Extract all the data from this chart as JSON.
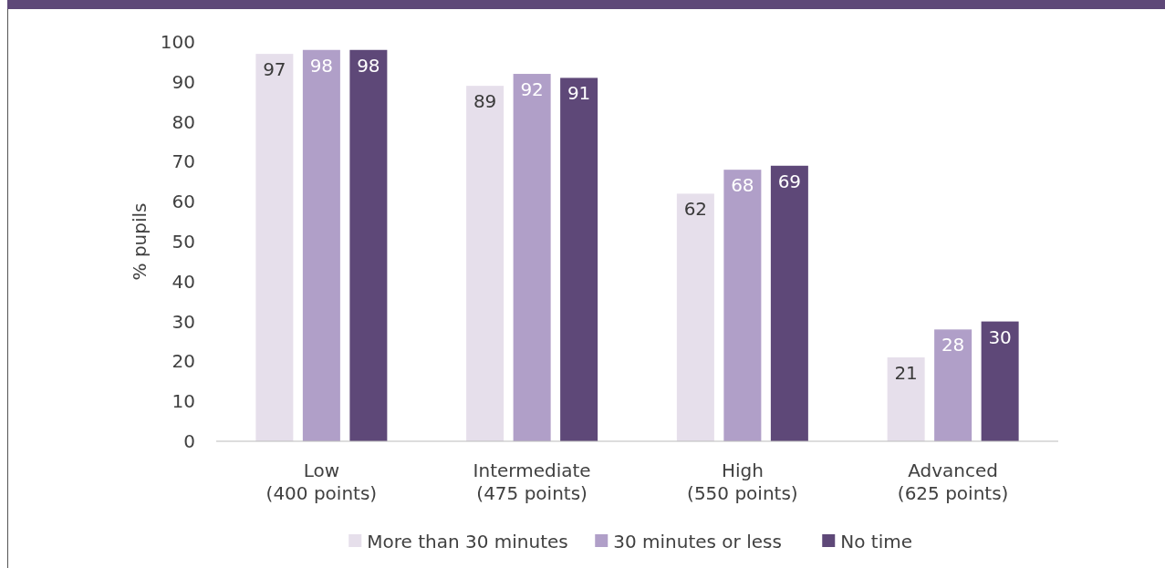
{
  "chart_data": {
    "type": "bar",
    "ylabel": "% pupils",
    "categories": [
      "Low\n(400 points)",
      "Intermediate\n(475 points)",
      "High\n(550 points)",
      "Advanced\n(625 points)"
    ],
    "series": [
      {
        "name": "More than 30 minutes",
        "color": "#e6dfeb",
        "values": [
          97,
          89,
          62,
          21
        ]
      },
      {
        "name": "30 minutes or less",
        "color": "#b09fc8",
        "values": [
          98,
          92,
          68,
          28
        ]
      },
      {
        "name": "No time",
        "color": "#5e4878",
        "values": [
          98,
          91,
          69,
          30
        ]
      }
    ],
    "ylim": [
      0,
      100
    ],
    "yticks": [
      0,
      10,
      20,
      30,
      40,
      50,
      60,
      70,
      80,
      90,
      100
    ],
    "grid": false,
    "legend": "bottom",
    "data_labels": true
  }
}
